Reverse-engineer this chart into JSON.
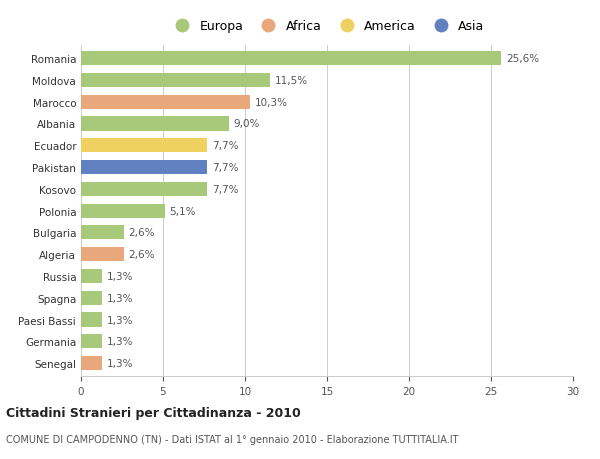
{
  "countries": [
    "Romania",
    "Moldova",
    "Marocco",
    "Albania",
    "Ecuador",
    "Pakistan",
    "Kosovo",
    "Polonia",
    "Bulgaria",
    "Algeria",
    "Russia",
    "Spagna",
    "Paesi Bassi",
    "Germania",
    "Senegal"
  ],
  "values": [
    25.6,
    11.5,
    10.3,
    9.0,
    7.7,
    7.7,
    7.7,
    5.1,
    2.6,
    2.6,
    1.3,
    1.3,
    1.3,
    1.3,
    1.3
  ],
  "labels": [
    "25,6%",
    "11,5%",
    "10,3%",
    "9,0%",
    "7,7%",
    "7,7%",
    "7,7%",
    "5,1%",
    "2,6%",
    "2,6%",
    "1,3%",
    "1,3%",
    "1,3%",
    "1,3%",
    "1,3%"
  ],
  "continents": [
    "Europa",
    "Europa",
    "Africa",
    "Europa",
    "America",
    "Asia",
    "Europa",
    "Europa",
    "Europa",
    "Africa",
    "Europa",
    "Europa",
    "Europa",
    "Europa",
    "Africa"
  ],
  "colors": {
    "Europa": "#a8c87a",
    "Africa": "#e8a87c",
    "America": "#f0d060",
    "Asia": "#6080c0"
  },
  "xlim": [
    0,
    30
  ],
  "xticks": [
    0,
    5,
    10,
    15,
    20,
    25,
    30
  ],
  "title": "Cittadini Stranieri per Cittadinanza - 2010",
  "subtitle": "COMUNE DI CAMPODENNO (TN) - Dati ISTAT al 1° gennaio 2010 - Elaborazione TUTTITALIA.IT",
  "bg_color": "#ffffff",
  "grid_color": "#cccccc",
  "bar_height": 0.65,
  "label_fontsize": 7.5,
  "tick_fontsize": 7.5,
  "legend_entries": [
    "Europa",
    "Africa",
    "America",
    "Asia"
  ]
}
